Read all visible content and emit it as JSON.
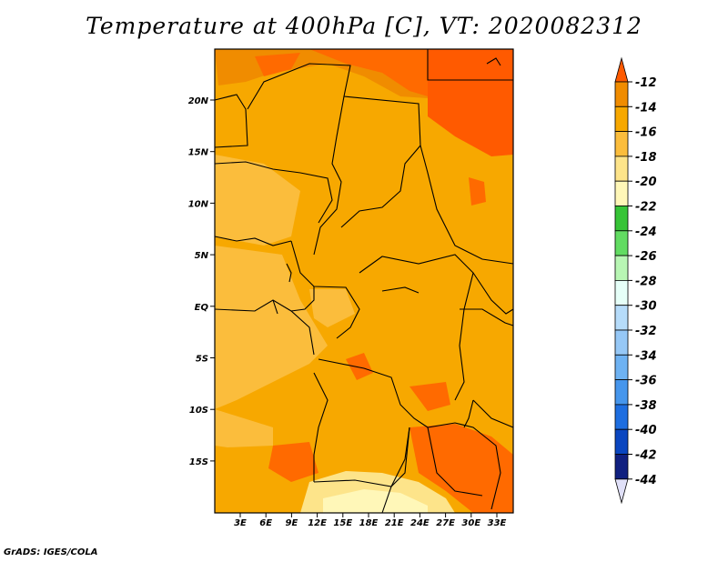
{
  "title": "Temperature at 400hPa [C], VT: 2020082312",
  "credit": "GrADS: IGES/COLA",
  "map": {
    "lat_labels": [
      "20N",
      "15N",
      "10N",
      "5N",
      "EQ",
      "5S",
      "10S",
      "15S"
    ],
    "lon_labels": [
      "3E",
      "6E",
      "9E",
      "12E",
      "15E",
      "18E",
      "21E",
      "24E",
      "27E",
      "30E",
      "33E"
    ]
  },
  "colorbar": {
    "labels": [
      "-12",
      "-14",
      "-16",
      "-18",
      "-20",
      "-22",
      "-24",
      "-26",
      "-28",
      "-30",
      "-32",
      "-34",
      "-36",
      "-38",
      "-40",
      "-42",
      "-44"
    ],
    "colors": [
      "#ff5a00",
      "#f08c00",
      "#f7a800",
      "#fbbd3c",
      "#fde48a",
      "#fff7b8",
      "#36c436",
      "#62dc62",
      "#b8f6b4",
      "#e6fff8",
      "#b6dcfa",
      "#96c8f6",
      "#6eb2f2",
      "#4696ec",
      "#1e6ee0",
      "#0a46c0",
      "#102080",
      "#e0e0f8"
    ]
  },
  "field": {
    "base_color": "#f7a800",
    "palette": {
      "warm": "#f08c00",
      "warmer": "#ff5a00",
      "cool": "#fbbd3c",
      "cooler": "#fde48a",
      "coolest": "#fff7b8"
    }
  }
}
